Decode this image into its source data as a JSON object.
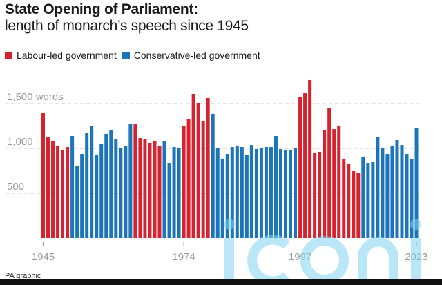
{
  "header": {
    "title": "State Opening of Parliament:",
    "subtitle": "length of monarch’s speech since 1945"
  },
  "legend": [
    {
      "label": "Labour-led government",
      "color": "#d7232f",
      "key": "L"
    },
    {
      "label": "Conservative-led government",
      "color": "#1b75b8",
      "key": "C"
    }
  ],
  "footer": {
    "source": "PA graphic"
  },
  "chart_data": {
    "type": "bar",
    "title": "State Opening of Parliament: length of monarch’s speech since 1945",
    "xlabel": "",
    "ylabel": "words",
    "ylim": [
      0,
      1800
    ],
    "yticks": [
      {
        "value": 500,
        "label": "500"
      },
      {
        "value": 1000,
        "label": "1,000"
      },
      {
        "value": 1500,
        "label": "1,500 words"
      }
    ],
    "grid": true,
    "xticks": [
      {
        "index": 0,
        "label": "1945"
      },
      {
        "index": 29,
        "label": "1974"
      },
      {
        "index": 53,
        "label": "1997"
      },
      {
        "index": 77,
        "label": "2023"
      }
    ],
    "series_colors": {
      "L": "#d7232f",
      "C": "#1b75b8"
    },
    "values": [
      1392,
      1130,
      1085,
      1023,
      977,
      1015,
      1138,
      800,
      938,
      1169,
      1246,
      923,
      1054,
      1162,
      1200,
      1108,
      1008,
      1031,
      1277,
      1269,
      1115,
      1100,
      1062,
      1085,
      1023,
      1077,
      838,
      1015,
      1008,
      1254,
      1323,
      1608,
      1508,
      1308,
      1562,
      1385,
      1008,
      885,
      938,
      1015,
      1031,
      1015,
      923,
      1038,
      992,
      1000,
      1015,
      1015,
      1138,
      992,
      985,
      985,
      1000,
      1577,
      1615,
      1762,
      954,
      962,
      1200,
      1446,
      1215,
      1246,
      885,
      831,
      746,
      731,
      908,
      838,
      846,
      1123,
      1008,
      938,
      1031,
      1092,
      1038,
      938,
      877,
      1223
    ],
    "government": [
      "L",
      "L",
      "L",
      "L",
      "L",
      "L",
      "C",
      "C",
      "C",
      "C",
      "C",
      "C",
      "C",
      "C",
      "C",
      "C",
      "C",
      "C",
      "C",
      "L",
      "L",
      "L",
      "L",
      "L",
      "L",
      "C",
      "C",
      "C",
      "C",
      "L",
      "L",
      "L",
      "L",
      "L",
      "L",
      "C",
      "C",
      "C",
      "C",
      "C",
      "C",
      "C",
      "C",
      "C",
      "C",
      "C",
      "C",
      "C",
      "C",
      "C",
      "C",
      "C",
      "C",
      "L",
      "L",
      "L",
      "L",
      "L",
      "L",
      "L",
      "L",
      "L",
      "L",
      "L",
      "L",
      "L",
      "C",
      "C",
      "C",
      "C",
      "C",
      "C",
      "C",
      "C",
      "C",
      "C",
      "C",
      "C"
    ]
  }
}
